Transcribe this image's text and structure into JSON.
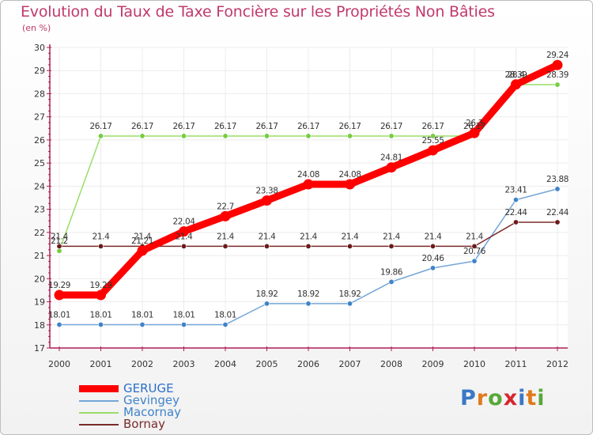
{
  "title": "Evolution du Taux de Taxe Foncière sur les Propriétés Non Bâties",
  "unit": "(en %)",
  "logo": {
    "text": "Proxiti",
    "letter_colors": [
      "#3b78c4",
      "#e07a1b",
      "#58a83a",
      "#d8262e",
      "#3b78c4",
      "#e07a1b",
      "#58a83a"
    ]
  },
  "colors": {
    "title": "#c0396b",
    "axis": "#ad1f56",
    "grid": "#ececec",
    "label": "#333333"
  },
  "chart_data": {
    "type": "line",
    "title": "Evolution du Taux de Taxe Foncière sur les Propriétés Non Bâties",
    "ylabel": "(en %)",
    "xlabel": "",
    "ylim": [
      17,
      30
    ],
    "yticks": [
      "17",
      "18",
      "19",
      "20",
      "21",
      "22",
      "23",
      "24",
      "25",
      "26",
      "27",
      "28",
      "29",
      "30"
    ],
    "x": [
      "2000",
      "2001",
      "2002",
      "2003",
      "2004",
      "2005",
      "2006",
      "2007",
      "2008",
      "2009",
      "2010",
      "2011",
      "2012"
    ],
    "series": [
      {
        "name": "GERUGE",
        "color": "#ff0000",
        "marker": "#ff0000",
        "values": [
          19.29,
          19.29,
          21.21,
          22.04,
          22.7,
          23.38,
          24.08,
          24.08,
          24.81,
          25.55,
          26.3,
          28.4,
          29.24
        ],
        "labels": [
          "19.29",
          "19.29",
          "21.21",
          "22.04",
          "22.7",
          "23.38",
          "24.08",
          "24.08",
          "24.81",
          "25.55",
          "26.3",
          "28.4",
          "29.24"
        ]
      },
      {
        "name": "Gevingey",
        "color": "#74a6d6",
        "marker": "#3f83c9",
        "values": [
          18.01,
          18.01,
          18.01,
          18.01,
          18.01,
          18.92,
          18.92,
          18.92,
          19.86,
          20.46,
          20.76,
          23.41,
          23.88
        ],
        "labels": [
          "18.01",
          "18.01",
          "18.01",
          "18.01",
          "18.01",
          "18.92",
          "18.92",
          "18.92",
          "19.86",
          "20.46",
          "20.76",
          "23.41",
          "23.88"
        ]
      },
      {
        "name": "Macornay",
        "color": "#99dd66",
        "marker": "#77cc44",
        "values": [
          21.2,
          26.17,
          26.17,
          26.17,
          26.17,
          26.17,
          26.17,
          26.17,
          26.17,
          26.17,
          26.17,
          28.39,
          28.39
        ],
        "labels": [
          "21.2",
          "26.17",
          "26.17",
          "26.17",
          "26.17",
          "26.17",
          "26.17",
          "26.17",
          "26.17",
          "26.17",
          "26.17",
          "28.39",
          "28.39"
        ]
      },
      {
        "name": "Bornay",
        "color": "#7a2a2a",
        "marker": "#6a1a1a",
        "values": [
          21.4,
          21.4,
          21.4,
          21.4,
          21.4,
          21.4,
          21.4,
          21.4,
          21.4,
          21.4,
          21.4,
          22.44,
          22.44
        ],
        "labels": [
          "21.4",
          "21.4",
          "21.4",
          "21.4",
          "21.4",
          "21.4",
          "21.4",
          "21.4",
          "21.4",
          "21.4",
          "21.4",
          "22.44",
          "22.44"
        ]
      }
    ],
    "legend": "bottom-left",
    "grid": true
  }
}
